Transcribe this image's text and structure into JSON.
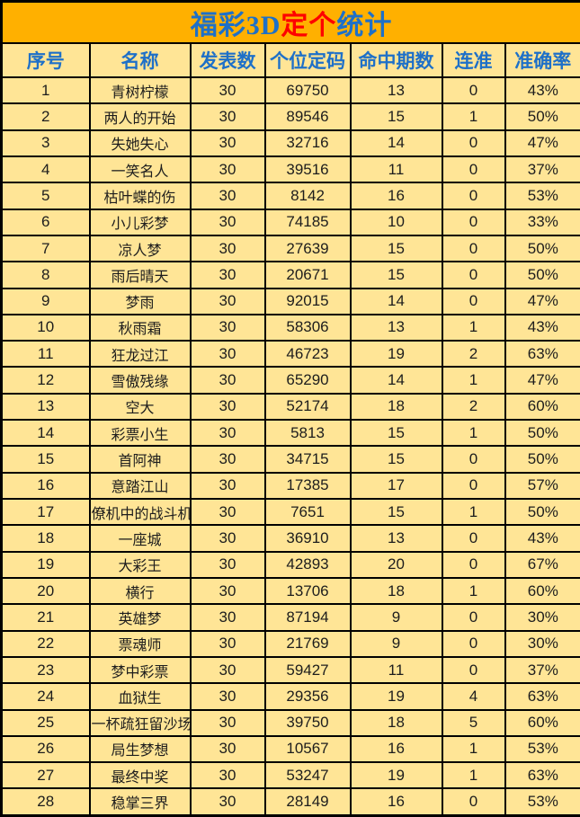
{
  "title": {
    "part1": "福彩3D",
    "part2": "定个",
    "part3": "统计"
  },
  "colors": {
    "title_bg": "#FFB000",
    "cell_bg": "#FFE596",
    "header_text": "#1E70C8",
    "title_blue": "#1E70C8",
    "title_red": "#FE0000",
    "border": "#000000"
  },
  "table": {
    "headers": [
      "序号",
      "名称",
      "发表数",
      "个位定码",
      "命中期数",
      "连准",
      "准确率"
    ],
    "rows": [
      [
        "1",
        "青树柠檬",
        "30",
        "69750",
        "13",
        "0",
        "43%"
      ],
      [
        "2",
        "两人的开始",
        "30",
        "89546",
        "15",
        "1",
        "50%"
      ],
      [
        "3",
        "失她失心",
        "30",
        "32716",
        "14",
        "0",
        "47%"
      ],
      [
        "4",
        "一笑名人",
        "30",
        "39516",
        "11",
        "0",
        "37%"
      ],
      [
        "5",
        "枯叶蝶的伤",
        "30",
        "8142",
        "16",
        "0",
        "53%"
      ],
      [
        "6",
        "小儿彩梦",
        "30",
        "74185",
        "10",
        "0",
        "33%"
      ],
      [
        "7",
        "凉人梦",
        "30",
        "27639",
        "15",
        "0",
        "50%"
      ],
      [
        "8",
        "雨后晴天",
        "30",
        "20671",
        "15",
        "0",
        "50%"
      ],
      [
        "9",
        "梦雨",
        "30",
        "92015",
        "14",
        "0",
        "47%"
      ],
      [
        "10",
        "秋雨霜",
        "30",
        "58306",
        "13",
        "1",
        "43%"
      ],
      [
        "11",
        "狂龙过江",
        "30",
        "46723",
        "19",
        "2",
        "63%"
      ],
      [
        "12",
        "雪傲残缘",
        "30",
        "65290",
        "14",
        "1",
        "47%"
      ],
      [
        "13",
        "空大",
        "30",
        "52174",
        "18",
        "2",
        "60%"
      ],
      [
        "14",
        "彩票小生",
        "30",
        "5813",
        "15",
        "1",
        "50%"
      ],
      [
        "15",
        "首阿神",
        "30",
        "34715",
        "15",
        "0",
        "50%"
      ],
      [
        "16",
        "意踏江山",
        "30",
        "17385",
        "17",
        "0",
        "57%"
      ],
      [
        "17",
        "僚机中的战斗机",
        "30",
        "7651",
        "15",
        "1",
        "50%"
      ],
      [
        "18",
        "一座城",
        "30",
        "36910",
        "13",
        "0",
        "43%"
      ],
      [
        "19",
        "大彩王",
        "30",
        "42893",
        "20",
        "0",
        "67%"
      ],
      [
        "20",
        "横行",
        "30",
        "13706",
        "18",
        "1",
        "60%"
      ],
      [
        "21",
        "英雄梦",
        "30",
        "87194",
        "9",
        "0",
        "30%"
      ],
      [
        "22",
        "票魂师",
        "30",
        "21769",
        "9",
        "0",
        "30%"
      ],
      [
        "23",
        "梦中彩票",
        "30",
        "59427",
        "11",
        "0",
        "37%"
      ],
      [
        "24",
        "血狱生",
        "30",
        "29356",
        "19",
        "4",
        "63%"
      ],
      [
        "25",
        "一杯疏狂留沙场",
        "30",
        "39750",
        "18",
        "5",
        "60%"
      ],
      [
        "26",
        "局生梦想",
        "30",
        "10567",
        "16",
        "1",
        "53%"
      ],
      [
        "27",
        "最终中奖",
        "30",
        "53247",
        "19",
        "1",
        "63%"
      ],
      [
        "28",
        "稳掌三界",
        "30",
        "28149",
        "16",
        "0",
        "53%"
      ]
    ]
  }
}
